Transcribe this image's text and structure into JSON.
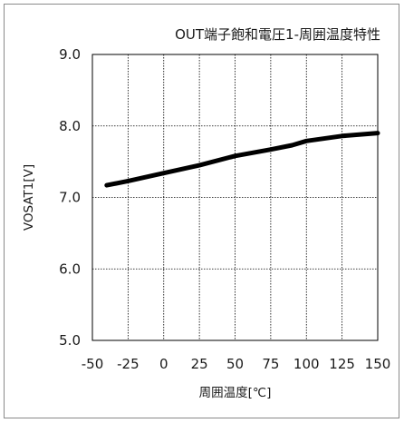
{
  "chart_data": {
    "type": "line",
    "title": "OUT端子飽和電圧1-周囲温度特性",
    "xlabel": "周囲温度[℃]",
    "ylabel": "VOSAT1[V]",
    "xlim": [
      -50,
      150
    ],
    "ylim": [
      5.0,
      9.0
    ],
    "x_ticks": [
      -50,
      -25,
      0,
      25,
      50,
      75,
      100,
      125,
      150
    ],
    "x_tick_labels": [
      "-50",
      "-25",
      "0",
      "25",
      "50",
      "75",
      "100",
      "125",
      "150"
    ],
    "y_ticks": [
      5.0,
      6.0,
      7.0,
      8.0,
      9.0
    ],
    "y_tick_labels": [
      "5.0",
      "6.0",
      "7.0",
      "8.0",
      "9.0"
    ],
    "grid": true,
    "series": [
      {
        "color": "#000000",
        "x": [
          -40,
          -25,
          0,
          25,
          50,
          75,
          90,
          100,
          125,
          150
        ],
        "y": [
          7.17,
          7.23,
          7.34,
          7.45,
          7.58,
          7.67,
          7.73,
          7.79,
          7.86,
          7.9
        ]
      }
    ]
  }
}
